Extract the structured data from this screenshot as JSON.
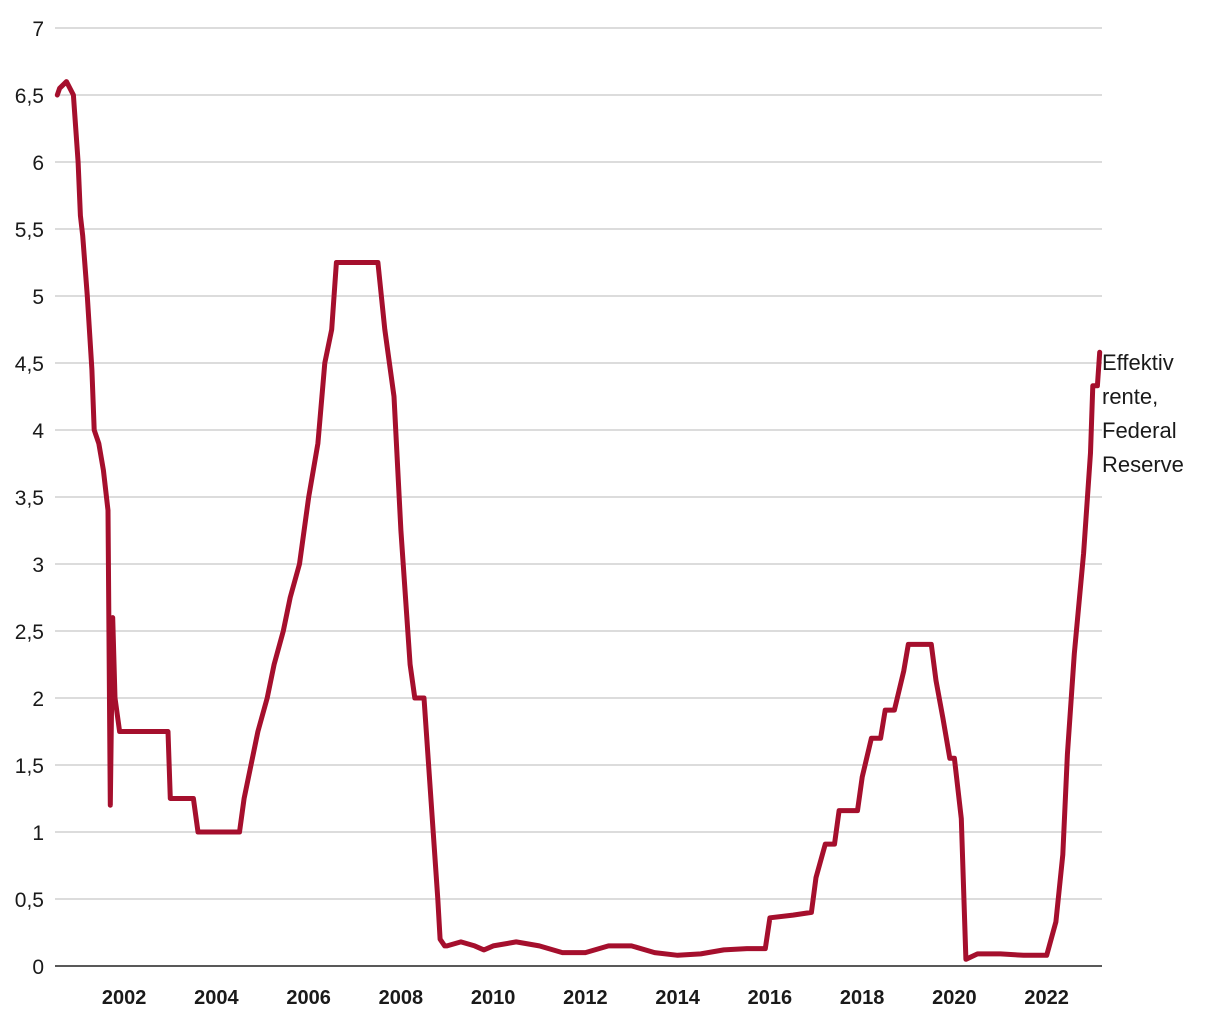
{
  "chart_data": {
    "type": "line",
    "title": "",
    "xlabel": "",
    "ylabel": "",
    "xlim": [
      2000.5,
      2023.2
    ],
    "ylim": [
      0,
      7
    ],
    "grid": true,
    "x_tick_labels": [
      "2002",
      "2004",
      "2006",
      "2008",
      "2010",
      "2012",
      "2014",
      "2016",
      "2018",
      "2020",
      "2022"
    ],
    "y_tick_labels": [
      "0",
      "0,5",
      "1",
      "1,5",
      "2",
      "2,5",
      "3",
      "3,5",
      "4",
      "4,5",
      "5",
      "5,5",
      "6",
      "6,5",
      "7"
    ],
    "series": [
      {
        "name": "Effektiv rente, Federal Reserve",
        "label_lines": [
          "Effektiv",
          "rente,",
          "Federal",
          "Reserve"
        ],
        "color": "#a50f2d",
        "x": [
          2000.55,
          2000.6,
          2000.75,
          2000.9,
          2001.0,
          2001.05,
          2001.1,
          2001.2,
          2001.3,
          2001.35,
          2001.45,
          2001.55,
          2001.65,
          2001.7,
          2001.75,
          2001.8,
          2001.9,
          2002.0,
          2002.5,
          2002.95,
          2003.0,
          2003.5,
          2003.6,
          2003.9,
          2004.3,
          2004.5,
          2004.6,
          2004.75,
          2004.9,
          2005.1,
          2005.25,
          2005.45,
          2005.6,
          2005.8,
          2006.0,
          2006.2,
          2006.35,
          2006.5,
          2006.6,
          2007.0,
          2007.5,
          2007.65,
          2007.75,
          2007.85,
          2008.0,
          2008.05,
          2008.2,
          2008.3,
          2008.5,
          2008.6,
          2008.7,
          2008.8,
          2008.85,
          2008.95,
          2009.0,
          2009.3,
          2009.6,
          2009.8,
          2010.0,
          2010.5,
          2011.0,
          2011.5,
          2012.0,
          2012.5,
          2013.0,
          2013.5,
          2014.0,
          2014.5,
          2015.0,
          2015.5,
          2015.9,
          2016.0,
          2016.5,
          2016.9,
          2017.0,
          2017.2,
          2017.4,
          2017.5,
          2017.7,
          2017.9,
          2018.0,
          2018.2,
          2018.4,
          2018.5,
          2018.7,
          2018.9,
          2019.0,
          2019.3,
          2019.5,
          2019.6,
          2019.75,
          2019.9,
          2020.0,
          2020.15,
          2020.25,
          2020.5,
          2021.0,
          2021.5,
          2022.0,
          2022.2,
          2022.35,
          2022.45,
          2022.6,
          2022.8,
          2022.95,
          2023.0,
          2023.1,
          2023.15
        ],
        "values": [
          6.5,
          6.55,
          6.6,
          6.5,
          6.0,
          5.6,
          5.45,
          5.0,
          4.45,
          4.0,
          3.9,
          3.7,
          3.4,
          1.2,
          2.6,
          2.0,
          1.75,
          1.75,
          1.75,
          1.75,
          1.25,
          1.25,
          1.0,
          1.0,
          1.0,
          1.0,
          1.25,
          1.5,
          1.75,
          2.0,
          2.25,
          2.5,
          2.75,
          3.0,
          3.5,
          3.9,
          4.5,
          4.75,
          5.25,
          5.25,
          5.25,
          4.75,
          4.5,
          4.25,
          3.25,
          3.0,
          2.25,
          2.0,
          2.0,
          1.5,
          1.0,
          0.5,
          0.2,
          0.15,
          0.15,
          0.18,
          0.15,
          0.12,
          0.15,
          0.18,
          0.15,
          0.1,
          0.1,
          0.15,
          0.15,
          0.1,
          0.08,
          0.09,
          0.12,
          0.13,
          0.13,
          0.36,
          0.38,
          0.4,
          0.66,
          0.91,
          0.91,
          1.16,
          1.16,
          1.16,
          1.41,
          1.7,
          1.7,
          1.91,
          1.91,
          2.2,
          2.4,
          2.4,
          2.4,
          2.13,
          1.85,
          1.55,
          1.55,
          1.1,
          0.05,
          0.09,
          0.09,
          0.08,
          0.08,
          0.33,
          0.83,
          1.58,
          2.33,
          3.08,
          3.83,
          4.33,
          4.33,
          4.58
        ]
      }
    ]
  }
}
